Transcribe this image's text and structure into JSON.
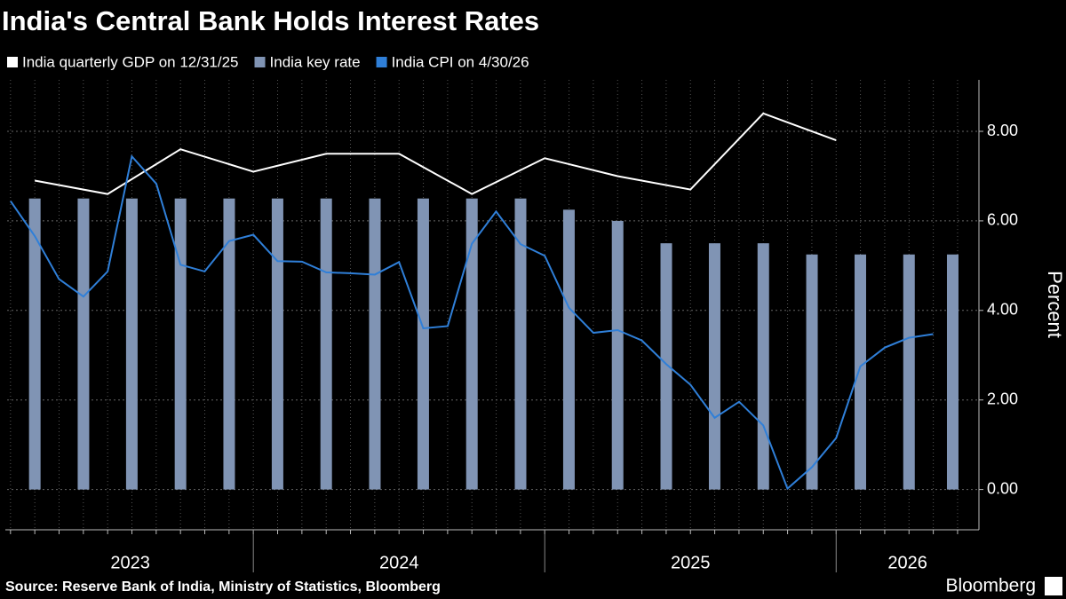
{
  "chart_data": {
    "type": "combo",
    "title": "India's Central Bank Holds Interest Rates",
    "y_label": "Percent",
    "source": "Source: Reserve Bank of India, Ministry of Statistics, Bloomberg",
    "brand": "Bloomberg",
    "xlim": [
      2023.155,
      2026.49
    ],
    "xticks": [
      2023,
      2024,
      2025,
      2026
    ],
    "ylim": [
      -0.9,
      9.15
    ],
    "yticks": [
      {
        "value": 0,
        "label": "0.00"
      },
      {
        "value": 2,
        "label": "2.00"
      },
      {
        "value": 4,
        "label": "4.00"
      },
      {
        "value": 6,
        "label": "6.00"
      },
      {
        "value": 8,
        "label": "8.00"
      }
    ],
    "grid": true,
    "legend": "top-left",
    "series": [
      {
        "name": "India quarterly GDP on 12/31/25",
        "type": "line",
        "color": "#ffffff",
        "x": [
          2023.25,
          2023.5,
          2023.75,
          2024.0,
          2024.25,
          2024.5,
          2024.75,
          2025.0,
          2025.25,
          2025.5,
          2025.75,
          2026.0
        ],
        "values": [
          6.9,
          6.6,
          7.6,
          7.1,
          7.5,
          7.5,
          6.6,
          7.4,
          7.0,
          6.7,
          8.4,
          7.8
        ]
      },
      {
        "name": "India key rate",
        "type": "bar",
        "color": "#8094b4",
        "x": [
          2023.25,
          2023.417,
          2023.583,
          2023.75,
          2023.917,
          2024.083,
          2024.25,
          2024.417,
          2024.583,
          2024.75,
          2024.917,
          2025.083,
          2025.25,
          2025.417,
          2025.583,
          2025.75,
          2025.917,
          2026.083,
          2026.25,
          2026.4
        ],
        "values": [
          6.5,
          6.5,
          6.5,
          6.5,
          6.5,
          6.5,
          6.5,
          6.5,
          6.5,
          6.5,
          6.5,
          6.25,
          6.0,
          5.5,
          5.5,
          5.5,
          5.25,
          5.25,
          5.25,
          5.25
        ]
      },
      {
        "name": "India CPI on 4/30/26",
        "type": "line",
        "color": "#2f7fd8",
        "x": [
          2023.167,
          2023.25,
          2023.333,
          2023.417,
          2023.5,
          2023.583,
          2023.667,
          2023.75,
          2023.833,
          2023.917,
          2024.0,
          2024.083,
          2024.167,
          2024.25,
          2024.333,
          2024.417,
          2024.5,
          2024.583,
          2024.667,
          2024.75,
          2024.833,
          2024.917,
          2025.0,
          2025.083,
          2025.167,
          2025.25,
          2025.333,
          2025.417,
          2025.5,
          2025.583,
          2025.667,
          2025.75,
          2025.833,
          2025.917,
          2026.0,
          2026.083,
          2026.167,
          2026.25,
          2026.333
        ],
        "values": [
          6.44,
          5.66,
          4.7,
          4.31,
          4.87,
          7.44,
          6.83,
          5.02,
          4.87,
          5.55,
          5.69,
          5.1,
          5.09,
          4.85,
          4.83,
          4.8,
          5.08,
          3.6,
          3.65,
          5.49,
          6.21,
          5.48,
          5.22,
          4.06,
          3.5,
          3.56,
          3.33,
          2.8,
          2.34,
          1.6,
          1.96,
          1.43,
          0.02,
          0.5,
          1.15,
          2.75,
          3.17,
          3.39,
          3.47
        ]
      }
    ]
  }
}
